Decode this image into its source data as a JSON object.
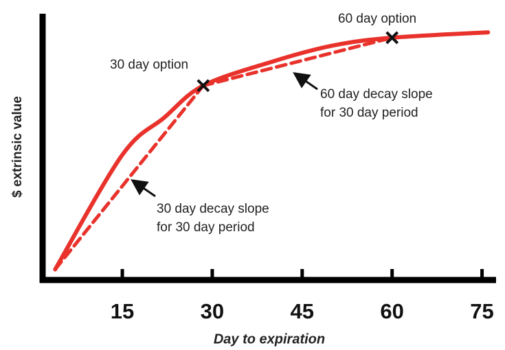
{
  "chart_data": {
    "type": "line",
    "xlabel": "Day to expiration",
    "ylabel": "$ extrinsic value",
    "xlim": [
      1.7,
      77
    ],
    "ylim": [
      0,
      100
    ],
    "xticks": [
      15,
      30,
      45,
      60,
      75
    ],
    "series": [
      {
        "color": "#e8322b",
        "dash": false,
        "x": [
          3.8,
          15,
          22,
          28.5,
          40,
          50,
          60,
          76
        ],
        "values": [
          4,
          47,
          61,
          73,
          82,
          88,
          91,
          93
        ]
      },
      {
        "color": "#e8322b",
        "dash": true,
        "x": [
          3.8,
          28.5
        ],
        "values": [
          4,
          73
        ]
      },
      {
        "color": "#e8322b",
        "dash": true,
        "x": [
          28.5,
          60
        ],
        "values": [
          73,
          91
        ]
      }
    ],
    "markers": [
      {
        "x": 28.5,
        "value": 73
      },
      {
        "x": 60,
        "value": 91
      }
    ],
    "annotations": [
      {
        "lines": [
          "30 day option"
        ]
      },
      {
        "lines": [
          "60 day option"
        ]
      },
      {
        "lines": [
          "60 day decay slope",
          "for 30 day period"
        ]
      },
      {
        "lines": [
          "30 day decay slope",
          "for 30 day period"
        ]
      }
    ]
  }
}
